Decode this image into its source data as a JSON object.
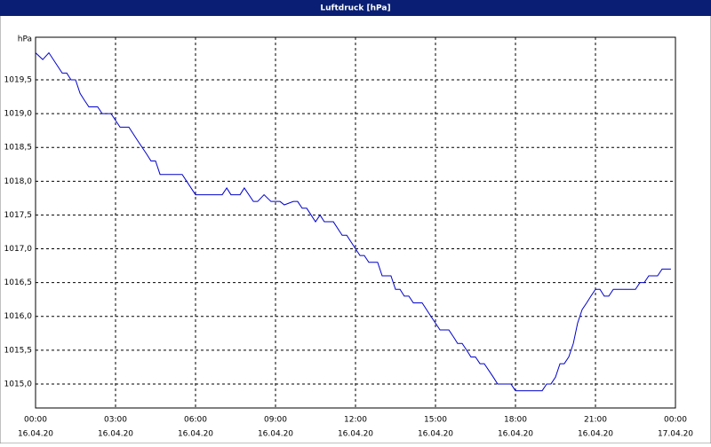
{
  "chart_data": {
    "type": "line",
    "title": "Luftdruck [hPa]",
    "y_unit": "hPa",
    "x": [
      0,
      0.27,
      0.5,
      1,
      1.17,
      1.33,
      1.5,
      1.67,
      1.83,
      2,
      2.33,
      2.5,
      2.83,
      3.17,
      3.5,
      3.83,
      4.17,
      4.33,
      4.5,
      4.67,
      5.5,
      6,
      7,
      7.17,
      7.33,
      7.67,
      7.83,
      8.17,
      8.33,
      8.57,
      8.83,
      9.17,
      9.33,
      9.67,
      9.83,
      10,
      10.17,
      10.5,
      10.67,
      10.83,
      11.17,
      11.5,
      11.67,
      12,
      12.17,
      12.33,
      12.5,
      12.83,
      13,
      13.33,
      13.5,
      13.67,
      13.83,
      14,
      14.17,
      14.5,
      14.83,
      15,
      15.17,
      15.5,
      15.67,
      15.83,
      16,
      16.17,
      16.33,
      16.5,
      16.67,
      16.83,
      17,
      17.17,
      17.33,
      17.83,
      18,
      19,
      19.17,
      19.33,
      19.5,
      19.67,
      19.83,
      20,
      20.17,
      20.33,
      20.5,
      20.67,
      20.83,
      21,
      21.17,
      21.33,
      21.5,
      21.67,
      22.5,
      22.67,
      22.83,
      23,
      23.33,
      23.5,
      23.83
    ],
    "series": [
      {
        "name": "Luftdruck",
        "color": "#0000cc",
        "values": [
          1019.9,
          1019.8,
          1019.9,
          1019.6,
          1019.6,
          1019.5,
          1019.5,
          1019.3,
          1019.2,
          1019.1,
          1019.1,
          1019.0,
          1019.0,
          1018.8,
          1018.8,
          1018.6,
          1018.4,
          1018.3,
          1018.3,
          1018.1,
          1018.1,
          1017.8,
          1017.8,
          1017.9,
          1017.8,
          1017.8,
          1017.9,
          1017.7,
          1017.7,
          1017.8,
          1017.7,
          1017.7,
          1017.65,
          1017.7,
          1017.7,
          1017.6,
          1017.6,
          1017.4,
          1017.5,
          1017.4,
          1017.4,
          1017.2,
          1017.2,
          1017.0,
          1016.9,
          1016.9,
          1016.8,
          1016.8,
          1016.6,
          1016.6,
          1016.4,
          1016.4,
          1016.3,
          1016.3,
          1016.2,
          1016.2,
          1016.0,
          1015.9,
          1015.8,
          1015.8,
          1015.7,
          1015.6,
          1015.6,
          1015.5,
          1015.4,
          1015.4,
          1015.3,
          1015.3,
          1015.2,
          1015.1,
          1015.0,
          1015.0,
          1014.9,
          1014.9,
          1015.0,
          1015.0,
          1015.1,
          1015.3,
          1015.3,
          1015.4,
          1015.6,
          1015.9,
          1016.1,
          1016.2,
          1016.3,
          1016.4,
          1016.4,
          1016.3,
          1016.3,
          1016.4,
          1016.4,
          1016.5,
          1016.5,
          1016.6,
          1016.6,
          1016.7,
          1016.7
        ]
      }
    ],
    "xlim": [
      0,
      24
    ],
    "ylim": [
      1014.645,
      1020.13
    ],
    "xticks": [
      {
        "value": 0,
        "label": "00:00",
        "date": "16.04.20"
      },
      {
        "value": 3,
        "label": "03:00",
        "date": "16.04.20"
      },
      {
        "value": 6,
        "label": "06:00",
        "date": "16.04.20"
      },
      {
        "value": 9,
        "label": "09:00",
        "date": "16.04.20"
      },
      {
        "value": 12,
        "label": "12:00",
        "date": "16.04.20"
      },
      {
        "value": 15,
        "label": "15:00",
        "date": "16.04.20"
      },
      {
        "value": 18,
        "label": "18:00",
        "date": "16.04.20"
      },
      {
        "value": 21,
        "label": "21:00",
        "date": "16.04.20"
      },
      {
        "value": 24,
        "label": "00:00",
        "date": "17.04.20"
      }
    ],
    "yticks": [
      {
        "value": 1015,
        "label": "1015,0"
      },
      {
        "value": 1015.5,
        "label": "1015,5"
      },
      {
        "value": 1016,
        "label": "1016,0"
      },
      {
        "value": 1016.5,
        "label": "1016,5"
      },
      {
        "value": 1017,
        "label": "1017,0"
      },
      {
        "value": 1017.5,
        "label": "1017,5"
      },
      {
        "value": 1018,
        "label": "1018,0"
      },
      {
        "value": 1018.5,
        "label": "1018,5"
      },
      {
        "value": 1019,
        "label": "1019,0"
      },
      {
        "value": 1019.5,
        "label": "1019,5"
      }
    ],
    "grid": true
  }
}
